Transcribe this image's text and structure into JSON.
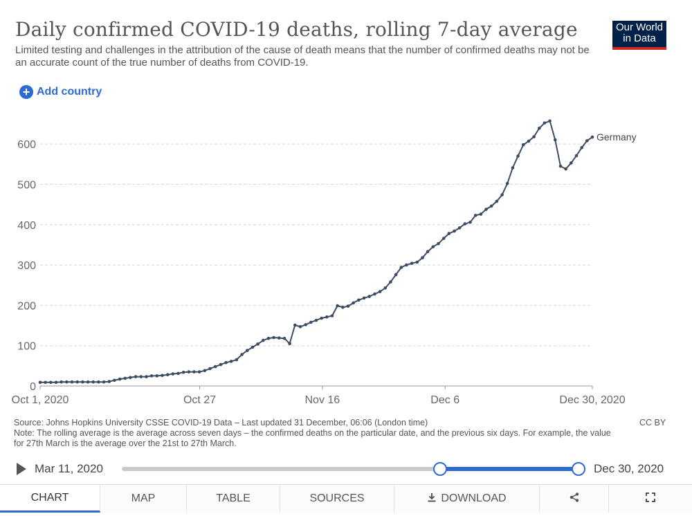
{
  "header": {
    "title": "Daily confirmed COVID-19 deaths, rolling 7-day average",
    "subtitle": "Limited testing and challenges in the attribution of the cause of death means that the number of confirmed deaths may not be an accurate count of the true number of deaths from COVID-19.",
    "logo_line1": "Our World",
    "logo_line2": "in Data",
    "add_country_label": "Add country"
  },
  "chart_data": {
    "type": "line",
    "x_range": [
      "2020-10-01",
      "2020-12-30"
    ],
    "ylim": [
      0,
      650
    ],
    "yticks": [
      0,
      100,
      200,
      300,
      400,
      500,
      600
    ],
    "xticks": [
      "Oct 1, 2020",
      "Oct 27",
      "Nov 16",
      "Dec 6",
      "Dec 30, 2020"
    ],
    "grid": true,
    "series": [
      {
        "name": "Germany",
        "color": "#3c4c63",
        "values": [
          9,
          9,
          9,
          9,
          10,
          10,
          10,
          10,
          10,
          10,
          10,
          10,
          10,
          11,
          14,
          17,
          19,
          21,
          23,
          23,
          23,
          25,
          25,
          26,
          28,
          30,
          31,
          34,
          35,
          35,
          35,
          38,
          43,
          48,
          53,
          58,
          61,
          65,
          78,
          88,
          96,
          104,
          113,
          118,
          120,
          119,
          118,
          105,
          151,
          147,
          152,
          158,
          163,
          168,
          171,
          174,
          199,
          195,
          198,
          206,
          213,
          218,
          222,
          228,
          234,
          243,
          258,
          276,
          294,
          300,
          304,
          307,
          318,
          333,
          345,
          353,
          366,
          378,
          384,
          392,
          402,
          406,
          423,
          426,
          438,
          446,
          458,
          474,
          502,
          541,
          570,
          598,
          607,
          618,
          639,
          652,
          657,
          610,
          545,
          538,
          553,
          571,
          591,
          608,
          617
        ]
      }
    ]
  },
  "footer": {
    "source": "Source: Johns Hopkins University CSSE COVID-19 Data – Last updated 31 December, 06:06 (London time)",
    "note": "Note: The rolling average is the average across seven days – the confirmed deaths on the particular date, and the previous six days. For example, the value for 27th March is the average over the 21st to 27th March.",
    "license": "CC BY"
  },
  "timeline": {
    "start_label": "Mar 11, 2020",
    "end_label": "Dec 30, 2020",
    "selection_start_fraction": 0.697,
    "selection_end_fraction": 1.0
  },
  "tabs": {
    "chart": "CHART",
    "map": "MAP",
    "table": "TABLE",
    "sources": "SOURCES",
    "download": "DOWNLOAD"
  },
  "icons": {
    "play": "play-icon",
    "download": "download-icon",
    "share": "share-icon",
    "fullscreen": "fullscreen-icon",
    "add": "plus-circle-icon"
  },
  "colors": {
    "accent": "#2d6bd3",
    "line": "#3c4c63",
    "logo_bg": "#002147",
    "logo_bar": "#ce261e"
  }
}
